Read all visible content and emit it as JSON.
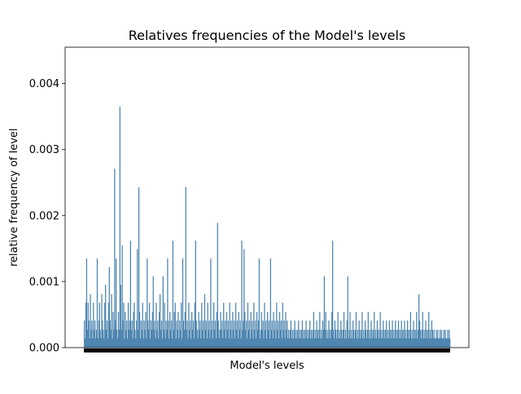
{
  "chart_data": {
    "type": "bar",
    "title": "Relatives frequencies of the Model's levels",
    "xlabel": "Model's levels",
    "ylabel": "relative frequency of level",
    "ylim": [
      0,
      0.00455
    ],
    "yticks": [
      {
        "value": 0.0,
        "label": "0.000"
      },
      {
        "value": 0.001,
        "label": "0.001"
      },
      {
        "value": 0.002,
        "label": "0.002"
      },
      {
        "value": 0.003,
        "label": "0.003"
      },
      {
        "value": 0.004,
        "label": "0.004"
      }
    ],
    "grid": false,
    "legend": "none",
    "bar_color": "#4f86b0",
    "x_tick_labels": "dense, overlapping (rendered as solid black band)",
    "level_count": 500,
    "values": [
      0.00041,
      0.00014,
      0.00068,
      0.00135,
      0.00027,
      0.00068,
      0.00041,
      0.00014,
      0.00081,
      0.00027,
      0.00041,
      0.00014,
      0.00068,
      0.00027,
      0.00041,
      0.00014,
      0.00027,
      0.00135,
      0.00014,
      0.00041,
      0.00068,
      0.00027,
      0.00014,
      0.00081,
      0.00041,
      0.00027,
      0.00014,
      0.00068,
      0.00095,
      0.00027,
      0.00041,
      0.00014,
      0.00068,
      0.00122,
      0.00041,
      0.00027,
      0.00081,
      0.00014,
      0.00054,
      0.00027,
      0.00271,
      0.00041,
      0.00135,
      0.00027,
      0.00014,
      0.00054,
      0.00027,
      0.00365,
      0.00095,
      0.00027,
      0.00155,
      0.00041,
      0.00068,
      0.00014,
      0.00054,
      0.00027,
      0.00041,
      0.00014,
      0.00068,
      0.00027,
      0.00041,
      0.00162,
      0.00027,
      0.00041,
      0.00014,
      0.00054,
      0.00068,
      0.00027,
      0.00014,
      0.00041,
      0.00149,
      0.00027,
      0.00243,
      0.00054,
      0.00014,
      0.00041,
      0.00027,
      0.00068,
      0.00014,
      0.00041,
      0.00027,
      0.00054,
      0.00014,
      0.00135,
      0.00041,
      0.00027,
      0.00068,
      0.00014,
      0.00041,
      0.00027,
      0.00054,
      0.00108,
      0.00027,
      0.00041,
      0.00014,
      0.00068,
      0.00027,
      0.00041,
      0.00014,
      0.00054,
      0.00081,
      0.00027,
      0.00041,
      0.00014,
      0.00108,
      0.00027,
      0.00068,
      0.00014,
      0.00041,
      0.00027,
      0.00135,
      0.00041,
      0.00014,
      0.00054,
      0.00027,
      0.00041,
      0.00014,
      0.00162,
      0.00027,
      0.00054,
      0.00068,
      0.00014,
      0.00041,
      0.00027,
      0.00054,
      0.00014,
      0.00041,
      0.00027,
      0.00068,
      0.00014,
      0.00135,
      0.00041,
      0.00027,
      0.00054,
      0.00243,
      0.00027,
      0.00041,
      0.00014,
      0.00068,
      0.00027,
      0.00041,
      0.00014,
      0.00054,
      0.00027,
      0.00041,
      0.00014,
      0.00068,
      0.00162,
      0.00041,
      0.00027,
      0.00014,
      0.00054,
      0.00027,
      0.00041,
      0.00014,
      0.00068,
      0.00027,
      0.00041,
      0.00014,
      0.00081,
      0.00027,
      0.00041,
      0.00014,
      0.00068,
      0.00027,
      0.00041,
      0.00014,
      0.00135,
      0.00027,
      0.00041,
      0.00014,
      0.00068,
      0.00027,
      0.00041,
      0.00014,
      0.00054,
      0.00189,
      0.00041,
      0.00014,
      0.00027,
      0.00054,
      0.00027,
      0.00041,
      0.00014,
      0.00068,
      0.00027,
      0.00041,
      0.00014,
      0.00054,
      0.00027,
      0.00041,
      0.00014,
      0.00068,
      0.00027,
      0.00041,
      0.00014,
      0.00054,
      0.00027,
      0.00041,
      0.00014,
      0.00068,
      0.00027,
      0.00041,
      0.00014,
      0.00054,
      0.00027,
      0.00041,
      0.00014,
      0.00162,
      0.00027,
      0.00041,
      0.00149,
      0.00054,
      0.00027,
      0.00041,
      0.00014,
      0.00068,
      0.00027,
      0.00041,
      0.00014,
      0.00054,
      0.00027,
      0.00041,
      0.00014,
      0.00068,
      0.00027,
      0.00041,
      0.00014,
      0.00054,
      0.00027,
      0.00041,
      0.00135,
      0.00014,
      0.00027,
      0.00054,
      0.00027,
      0.00041,
      0.00014,
      0.00068,
      0.00027,
      0.00041,
      0.00014,
      0.00054,
      0.00027,
      0.00041,
      0.00014,
      0.00135,
      0.00027,
      0.00041,
      0.00014,
      0.00054,
      0.00027,
      0.00041,
      0.00014,
      0.00068,
      0.00027,
      0.00041,
      0.00014,
      0.00054,
      0.00027,
      0.00041,
      0.00014,
      0.00068,
      0.00027,
      0.00041,
      0.00014,
      0.00054,
      0.00027,
      0.00041,
      0.00014,
      0.00027,
      0.00014,
      0.00027,
      0.00041,
      0.00014,
      0.00027,
      0.00014,
      0.00027,
      0.00041,
      0.00014,
      0.00027,
      0.00014,
      0.00027,
      0.00041,
      0.00014,
      0.00027,
      0.00014,
      0.00027,
      0.00041,
      0.00014,
      0.00027,
      0.00014,
      0.00027,
      0.00041,
      0.00014,
      0.00027,
      0.00014,
      0.00027,
      0.00041,
      0.00014,
      0.00027,
      0.00014,
      0.00027,
      0.00054,
      0.00014,
      0.00027,
      0.00014,
      0.00041,
      0.00027,
      0.00014,
      0.00027,
      0.00054,
      0.00014,
      0.00027,
      0.00014,
      0.00041,
      0.00027,
      0.00108,
      0.00027,
      0.00054,
      0.00014,
      0.00027,
      0.00014,
      0.00041,
      0.00027,
      0.00014,
      0.00027,
      0.00054,
      0.00162,
      0.00027,
      0.00014,
      0.00041,
      0.00027,
      0.00014,
      0.00027,
      0.00054,
      0.00014,
      0.00027,
      0.00014,
      0.00041,
      0.00027,
      0.00014,
      0.00027,
      0.00054,
      0.00014,
      0.00027,
      0.00014,
      0.00041,
      0.00108,
      0.00014,
      0.00027,
      0.00054,
      0.00014,
      0.00027,
      0.00014,
      0.00041,
      0.00027,
      0.00014,
      0.00027,
      0.00054,
      0.00014,
      0.00027,
      0.00014,
      0.00041,
      0.00027,
      0.00014,
      0.00027,
      0.00054,
      0.00014,
      0.00027,
      0.00014,
      0.00041,
      0.00027,
      0.00014,
      0.00027,
      0.00054,
      0.00014,
      0.00027,
      0.00014,
      0.00041,
      0.00027,
      0.00014,
      0.00027,
      0.00054,
      0.00014,
      0.00027,
      0.00014,
      0.00041,
      0.00027,
      0.00014,
      0.00027,
      0.00054,
      0.00014,
      0.00027,
      0.00014,
      0.00041,
      0.00027,
      0.00014,
      0.00027,
      0.00041,
      0.00014,
      0.00027,
      0.00014,
      0.00041,
      0.00027,
      0.00014,
      0.00027,
      0.00041,
      0.00014,
      0.00027,
      0.00014,
      0.00041,
      0.00027,
      0.00014,
      0.00027,
      0.00041,
      0.00014,
      0.00027,
      0.00014,
      0.00041,
      0.00027,
      0.00014,
      0.00027,
      0.00041,
      0.00014,
      0.00027,
      0.00014,
      0.00041,
      0.00027,
      0.00014,
      0.00027,
      0.00054,
      0.00014,
      0.00027,
      0.00014,
      0.00041,
      0.00027,
      0.00014,
      0.00027,
      0.00054,
      0.00014,
      0.00027,
      0.00081,
      0.00041,
      0.00027,
      0.00014,
      0.00027,
      0.00054,
      0.00014,
      0.00027,
      0.00014,
      0.00041,
      0.00027,
      0.00014,
      0.00027,
      0.00054,
      0.00014,
      0.00027,
      0.00014,
      0.00041,
      0.00027,
      0.00014,
      0.00027,
      0.00014,
      0.00014,
      0.00027,
      0.00014,
      0.00027,
      0.00014,
      0.00014,
      0.00027,
      0.00014,
      0.00027,
      0.00014,
      0.00014,
      0.00027,
      0.00014,
      0.00027,
      0.00014,
      0.00014,
      0.00027,
      0.00014,
      0.00027,
      0.00014
    ]
  }
}
